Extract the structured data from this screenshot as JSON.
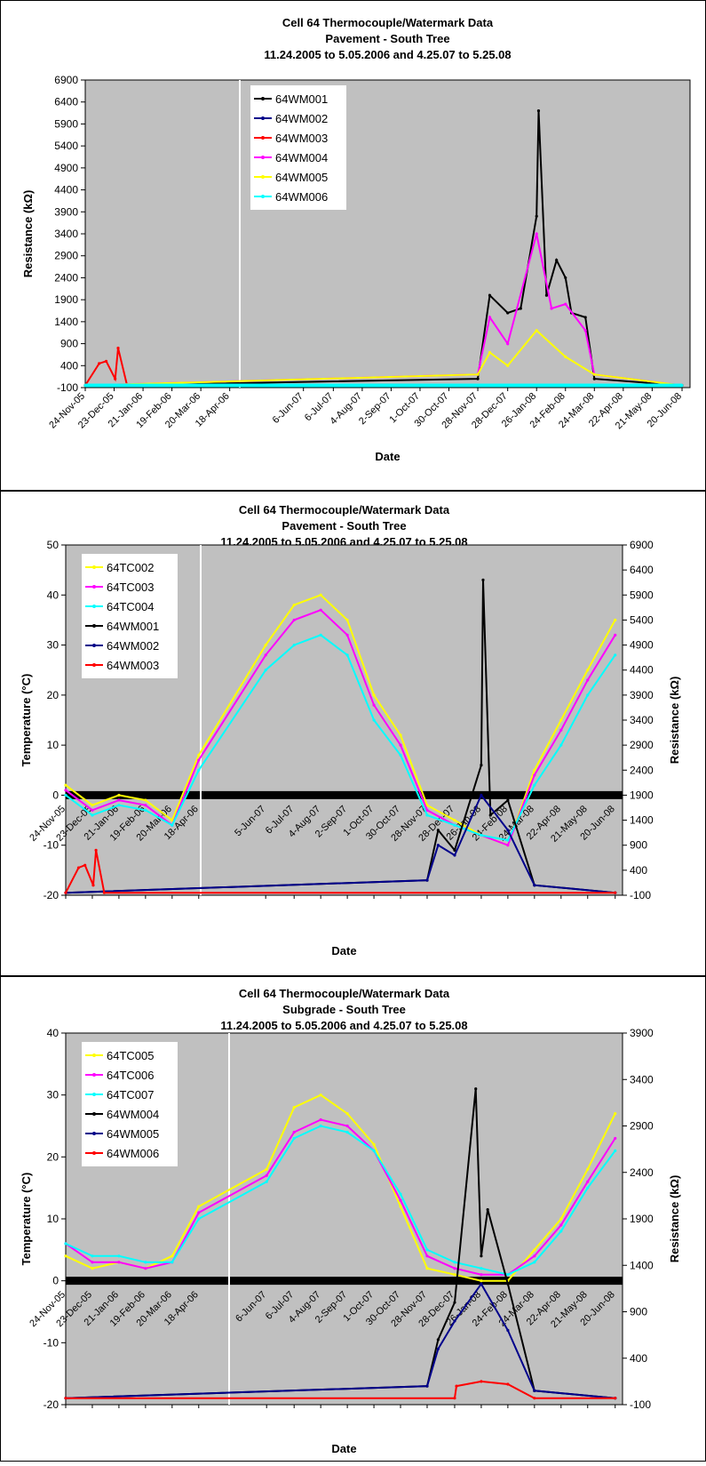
{
  "chart_data": [
    {
      "type": "line",
      "title": "Cell 64 Thermocouple/Watermark Data",
      "subtitle": "Pavement - South Tree",
      "subtitle2": "11.24.2005 to 5.05.2006 and 4.25.07 to 5.25.08",
      "xlabel": "Date",
      "ylabel": "Resistance (kΩ)",
      "ylim": [
        -100,
        6900
      ],
      "yticks": [
        "6900",
        "6400",
        "5900",
        "5400",
        "4900",
        "4400",
        "3900",
        "3400",
        "2900",
        "2400",
        "1900",
        "1400",
        "900",
        "400",
        "-100"
      ],
      "xticks": [
        "24-Nov-05",
        "23-Dec-05",
        "21-Jan-06",
        "19-Feb-06",
        "20-Mar-06",
        "18-Apr-06",
        "6-Jun-07",
        "6-Jul-07",
        "4-Aug-07",
        "2-Sep-07",
        "1-Oct-07",
        "30-Oct-07",
        "28-Nov-07",
        "28-Dec-07",
        "26-Jan-08",
        "24-Feb-08",
        "24-Mar-08",
        "22-Apr-08",
        "21-May-08",
        "20-Jun-08"
      ],
      "legend_position": "upper-left",
      "plot_background": "#c0c0c0",
      "series": [
        {
          "name": "64WM001",
          "color": "#000000",
          "x": [
            "24-Nov-05",
            "23-Dec-05",
            "28-Nov-07",
            "10-Dec-07",
            "28-Dec-07",
            "10-Jan-08",
            "26-Jan-08",
            "28-Jan-08",
            "5-Feb-08",
            "15-Feb-08",
            "24-Feb-08",
            "1-Mar-08",
            "15-Mar-08",
            "24-Mar-08",
            "20-Jun-08"
          ],
          "values": [
            -50,
            -50,
            100,
            2000,
            1600,
            1700,
            3800,
            6200,
            2000,
            2800,
            2400,
            1600,
            1500,
            100,
            -50
          ]
        },
        {
          "name": "64WM002",
          "color": "#00008b",
          "x": [
            "24-Nov-05",
            "20-Jun-08"
          ],
          "values": [
            -50,
            -50
          ]
        },
        {
          "name": "64WM003",
          "color": "#ff0000",
          "x": [
            "24-Nov-05",
            "8-Dec-05",
            "15-Dec-05",
            "24-Dec-05",
            "27-Dec-05",
            "5-Jan-06",
            "20-Jun-08"
          ],
          "values": [
            -50,
            450,
            500,
            100,
            800,
            -50,
            -50
          ]
        },
        {
          "name": "64WM004",
          "color": "#ff00ff",
          "x": [
            "24-Nov-05",
            "28-Nov-07",
            "10-Dec-07",
            "28-Dec-07",
            "26-Jan-08",
            "10-Feb-08",
            "24-Feb-08",
            "15-Mar-08",
            "24-Mar-08",
            "20-Jun-08"
          ],
          "values": [
            -50,
            200,
            1500,
            900,
            3400,
            1700,
            1800,
            1200,
            200,
            -50
          ]
        },
        {
          "name": "64WM005",
          "color": "#ffff00",
          "x": [
            "24-Nov-05",
            "28-Nov-07",
            "10-Dec-07",
            "28-Dec-07",
            "26-Jan-08",
            "24-Feb-08",
            "24-Mar-08",
            "20-Jun-08"
          ],
          "values": [
            -50,
            200,
            700,
            400,
            1200,
            600,
            200,
            -50
          ]
        },
        {
          "name": "64WM006",
          "color": "#00ffff",
          "x": [
            "24-Nov-05",
            "20-Jun-08"
          ],
          "values": [
            -50,
            -50
          ]
        }
      ]
    },
    {
      "type": "line",
      "title": "Cell 64 Thermocouple/Watermark Data",
      "subtitle": "Pavement - South Tree",
      "subtitle2": "11.24.2005 to 5.05.2006 and 4.25.07 to 5.25.08",
      "xlabel": "Date",
      "ylabel": "Temperature (°C)",
      "ylabel_right": "Resistance (kΩ)",
      "ylim": [
        -20,
        50
      ],
      "ylim_right": [
        -100,
        6900
      ],
      "yticks": [
        "50",
        "40",
        "30",
        "20",
        "10",
        "0",
        "-10",
        "-20"
      ],
      "yticks_right": [
        "6900",
        "6400",
        "5900",
        "5400",
        "4900",
        "4400",
        "3900",
        "3400",
        "2900",
        "2400",
        "1900",
        "1400",
        "900",
        "400",
        "-100"
      ],
      "xticks": [
        "24-Nov-05",
        "23-Dec-05",
        "21-Jan-06",
        "19-Feb-06",
        "20-Mar-06",
        "18-Apr-06",
        "5-Jun-07",
        "6-Jul-07",
        "4-Aug-07",
        "2-Sep-07",
        "1-Oct-07",
        "30-Oct-07",
        "28-Nov-07",
        "28-Dec-07",
        "26-Jan-08",
        "24-Feb-08",
        "24-Mar-08",
        "22-Apr-08",
        "21-May-08",
        "20-Jun-08"
      ],
      "legend_position": "upper-left",
      "plot_background": "#c0c0c0",
      "series": [
        {
          "name": "64TC002",
          "color": "#ffff00",
          "axis": "left",
          "x": [
            "24-Nov-05",
            "23-Dec-05",
            "21-Jan-06",
            "19-Feb-06",
            "20-Mar-06",
            "18-Apr-06",
            "5-Jun-07",
            "6-Jul-07",
            "4-Aug-07",
            "2-Sep-07",
            "1-Oct-07",
            "30-Oct-07",
            "28-Nov-07",
            "28-Dec-07",
            "26-Jan-08",
            "24-Feb-08",
            "24-Mar-08",
            "22-Apr-08",
            "21-May-08",
            "20-Jun-08"
          ],
          "values": [
            2,
            -2,
            0,
            -1,
            -5,
            8,
            30,
            38,
            40,
            35,
            20,
            12,
            -2,
            -5,
            -8,
            -10,
            5,
            15,
            25,
            35
          ]
        },
        {
          "name": "64TC003",
          "color": "#ff00ff",
          "axis": "left",
          "x": [
            "24-Nov-05",
            "23-Dec-05",
            "21-Jan-06",
            "19-Feb-06",
            "20-Mar-06",
            "18-Apr-06",
            "5-Jun-07",
            "6-Jul-07",
            "4-Aug-07",
            "2-Sep-07",
            "1-Oct-07",
            "30-Oct-07",
            "28-Nov-07",
            "28-Dec-07",
            "26-Jan-08",
            "24-Feb-08",
            "24-Mar-08",
            "22-Apr-08",
            "21-May-08",
            "20-Jun-08"
          ],
          "values": [
            1,
            -3,
            -1,
            -2,
            -6,
            7,
            28,
            35,
            37,
            32,
            18,
            10,
            -3,
            -6,
            -8,
            -10,
            4,
            13,
            23,
            32
          ]
        },
        {
          "name": "64TC004",
          "color": "#00ffff",
          "axis": "left",
          "x": [
            "24-Nov-05",
            "23-Dec-05",
            "21-Jan-06",
            "19-Feb-06",
            "20-Mar-06",
            "18-Apr-06",
            "5-Jun-07",
            "6-Jul-07",
            "4-Aug-07",
            "2-Sep-07",
            "1-Oct-07",
            "30-Oct-07",
            "28-Nov-07",
            "28-Dec-07",
            "26-Jan-08",
            "24-Feb-08",
            "24-Mar-08",
            "22-Apr-08",
            "21-May-08",
            "20-Jun-08"
          ],
          "values": [
            0,
            -4,
            -2,
            -3,
            -6,
            5,
            25,
            30,
            32,
            28,
            15,
            8,
            -4,
            -6,
            -8,
            -9,
            2,
            10,
            20,
            28
          ]
        },
        {
          "name": "64WM001",
          "color": "#000000",
          "axis": "right",
          "x": [
            "24-Nov-05",
            "28-Nov-07",
            "10-Dec-07",
            "28-Dec-07",
            "26-Jan-08",
            "28-Jan-08",
            "5-Feb-08",
            "24-Feb-08",
            "24-Mar-08",
            "20-Jun-08"
          ],
          "values": [
            -50,
            200,
            1200,
            800,
            2500,
            6200,
            1500,
            1800,
            100,
            -50
          ]
        },
        {
          "name": "64WM002",
          "color": "#00008b",
          "axis": "right",
          "x": [
            "24-Nov-05",
            "28-Nov-07",
            "10-Dec-07",
            "28-Dec-07",
            "26-Jan-08",
            "24-Feb-08",
            "24-Mar-08",
            "20-Jun-08"
          ],
          "values": [
            -50,
            200,
            900,
            700,
            1900,
            1200,
            100,
            -50
          ]
        },
        {
          "name": "64WM003",
          "color": "#ff0000",
          "axis": "right",
          "x": [
            "24-Nov-05",
            "8-Dec-05",
            "15-Dec-05",
            "24-Dec-05",
            "27-Dec-05",
            "5-Jan-06",
            "20-Jun-08"
          ],
          "values": [
            -50,
            450,
            500,
            100,
            800,
            -50,
            -50
          ]
        }
      ]
    },
    {
      "type": "line",
      "title": "Cell 64 Thermocouple/Watermark Data",
      "subtitle": "Subgrade - South Tree",
      "subtitle2": "11.24.2005 to 5.05.2006 and 4.25.07 to 5.25.08",
      "xlabel": "Date",
      "ylabel": "Temperature (°C)",
      "ylabel_right": "Resistance (kΩ)",
      "ylim": [
        -20,
        40
      ],
      "ylim_right": [
        -100,
        3900
      ],
      "yticks": [
        "40",
        "30",
        "20",
        "10",
        "0",
        "-10",
        "-20"
      ],
      "yticks_right": [
        "3900",
        "3400",
        "2900",
        "2400",
        "1900",
        "1400",
        "900",
        "400",
        "-100"
      ],
      "xticks": [
        "24-Nov-05",
        "23-Dec-05",
        "21-Jan-06",
        "19-Feb-06",
        "20-Mar-06",
        "18-Apr-06",
        "6-Jun-07",
        "6-Jul-07",
        "4-Aug-07",
        "2-Sep-07",
        "1-Oct-07",
        "30-Oct-07",
        "28-Nov-07",
        "28-Dec-07",
        "26-Jan-08",
        "24-Feb-08",
        "24-Mar-08",
        "22-Apr-08",
        "21-May-08",
        "20-Jun-08"
      ],
      "legend_position": "upper-left",
      "plot_background": "#c0c0c0",
      "series": [
        {
          "name": "64TC005",
          "color": "#ffff00",
          "axis": "left",
          "x": [
            "24-Nov-05",
            "23-Dec-05",
            "21-Jan-06",
            "19-Feb-06",
            "20-Mar-06",
            "18-Apr-06",
            "6-Jun-07",
            "6-Jul-07",
            "4-Aug-07",
            "2-Sep-07",
            "1-Oct-07",
            "30-Oct-07",
            "28-Nov-07",
            "28-Dec-07",
            "26-Jan-08",
            "24-Feb-08",
            "24-Mar-08",
            "22-Apr-08",
            "21-May-08",
            "20-Jun-08"
          ],
          "values": [
            4,
            2,
            3,
            2,
            4,
            12,
            18,
            28,
            30,
            27,
            22,
            12,
            2,
            1,
            0,
            0,
            5,
            10,
            18,
            27
          ]
        },
        {
          "name": "64TC006",
          "color": "#ff00ff",
          "axis": "left",
          "x": [
            "24-Nov-05",
            "23-Dec-05",
            "21-Jan-06",
            "19-Feb-06",
            "20-Mar-06",
            "18-Apr-06",
            "6-Jun-07",
            "6-Jul-07",
            "4-Aug-07",
            "2-Sep-07",
            "1-Oct-07",
            "30-Oct-07",
            "28-Nov-07",
            "28-Dec-07",
            "26-Jan-08",
            "24-Feb-08",
            "24-Mar-08",
            "22-Apr-08",
            "21-May-08",
            "20-Jun-08"
          ],
          "values": [
            6,
            3,
            3,
            2,
            3,
            11,
            17,
            24,
            26,
            25,
            21,
            13,
            4,
            2,
            1,
            1,
            4,
            9,
            16,
            23
          ]
        },
        {
          "name": "64TC007",
          "color": "#00ffff",
          "axis": "left",
          "x": [
            "24-Nov-05",
            "23-Dec-05",
            "21-Jan-06",
            "19-Feb-06",
            "20-Mar-06",
            "18-Apr-06",
            "6-Jun-07",
            "6-Jul-07",
            "4-Aug-07",
            "2-Sep-07",
            "1-Oct-07",
            "30-Oct-07",
            "28-Nov-07",
            "28-Dec-07",
            "26-Jan-08",
            "24-Feb-08",
            "24-Mar-08",
            "22-Apr-08",
            "21-May-08",
            "20-Jun-08"
          ],
          "values": [
            6,
            4,
            4,
            3,
            3,
            10,
            16,
            23,
            25,
            24,
            21,
            14,
            5,
            3,
            2,
            1,
            3,
            8,
            15,
            21
          ]
        },
        {
          "name": "64WM004",
          "color": "#000000",
          "axis": "right",
          "x": [
            "24-Nov-05",
            "28-Nov-07",
            "10-Dec-07",
            "28-Dec-07",
            "20-Jan-08",
            "26-Jan-08",
            "2-Feb-08",
            "24-Feb-08",
            "24-Mar-08",
            "20-Jun-08"
          ],
          "values": [
            -30,
            100,
            600,
            1000,
            3300,
            1500,
            2000,
            1200,
            50,
            -30
          ]
        },
        {
          "name": "64WM005",
          "color": "#00008b",
          "axis": "right",
          "x": [
            "24-Nov-05",
            "28-Nov-07",
            "10-Dec-07",
            "28-Dec-07",
            "26-Jan-08",
            "24-Feb-08",
            "24-Mar-08",
            "20-Jun-08"
          ],
          "values": [
            -30,
            100,
            500,
            800,
            1200,
            700,
            50,
            -30
          ]
        },
        {
          "name": "64WM006",
          "color": "#ff0000",
          "axis": "right",
          "x": [
            "24-Nov-05",
            "28-Dec-07",
            "30-Dec-07",
            "26-Jan-08",
            "24-Feb-08",
            "24-Mar-08",
            "20-Jun-08"
          ],
          "values": [
            -30,
            -30,
            100,
            150,
            120,
            -30,
            -30
          ]
        }
      ]
    }
  ]
}
